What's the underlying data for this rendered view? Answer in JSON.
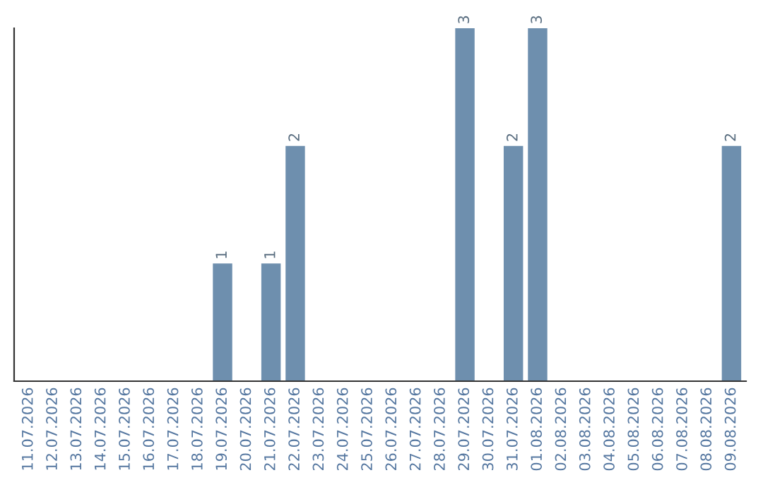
{
  "chart_data": {
    "type": "bar",
    "categories": [
      "11.07.2026",
      "12.07.2026",
      "13.07.2026",
      "14.07.2026",
      "15.07.2026",
      "16.07.2026",
      "17.07.2026",
      "18.07.2026",
      "19.07.2026",
      "20.07.2026",
      "21.07.2026",
      "22.07.2026",
      "23.07.2026",
      "24.07.2026",
      "25.07.2026",
      "26.07.2026",
      "27.07.2026",
      "28.07.2026",
      "29.07.2026",
      "30.07.2026",
      "31.07.2026",
      "01.08.2026",
      "02.08.2026",
      "03.08.2026",
      "04.08.2026",
      "05.08.2026",
      "06.08.2026",
      "07.08.2026",
      "08.08.2026",
      "09.08.2026"
    ],
    "values": [
      0,
      0,
      0,
      0,
      0,
      0,
      0,
      0,
      1,
      0,
      1,
      2,
      0,
      0,
      0,
      0,
      0,
      0,
      3,
      0,
      2,
      3,
      0,
      0,
      0,
      0,
      0,
      0,
      0,
      2
    ],
    "value_labels": [
      null,
      null,
      null,
      null,
      null,
      null,
      null,
      null,
      "1",
      null,
      "1",
      "2",
      null,
      null,
      null,
      null,
      null,
      null,
      "3",
      null,
      "2",
      "3",
      null,
      null,
      null,
      null,
      null,
      null,
      null,
      "2"
    ],
    "color": "#6e8fae",
    "ylim": [
      0,
      3
    ],
    "tick_labels": "x",
    "grid": false,
    "legend": false
  }
}
